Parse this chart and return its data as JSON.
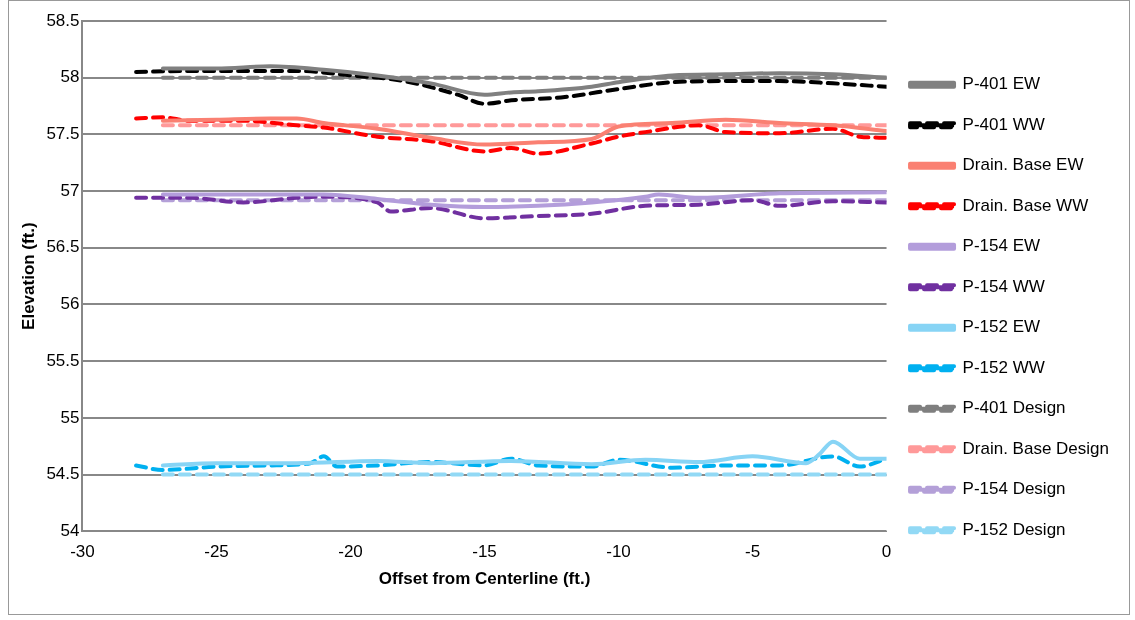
{
  "chart_data": {
    "type": "line",
    "xlabel": "Offset from Centerline (ft.)",
    "ylabel": "Elevation (ft.)",
    "xlim": [
      -30,
      0
    ],
    "xticks": [
      -30,
      -25,
      -20,
      -15,
      -10,
      -5,
      0
    ],
    "ylim": [
      54,
      58.5
    ],
    "yticks": [
      54,
      54.5,
      55,
      55.5,
      56,
      56.5,
      57,
      57.5,
      58,
      58.5
    ],
    "grid": "y",
    "legend": "right",
    "marker": "none",
    "series": [
      {
        "name": "P-401 EW",
        "color": "#808080",
        "line_style": "solid",
        "x": [
          -27,
          -25,
          -23,
          -21,
          -19,
          -17,
          -15,
          -14,
          -13,
          -11,
          -10,
          -8,
          -6,
          -4,
          -2,
          0
        ],
        "values": [
          58.08,
          58.08,
          58.1,
          58.07,
          58.02,
          57.95,
          57.85,
          57.87,
          57.88,
          57.92,
          57.96,
          58.02,
          58.03,
          58.04,
          58.03,
          58.0
        ]
      },
      {
        "name": "P-401 WW",
        "color": "#000000",
        "line_style": "dashed",
        "x": [
          -28,
          -26,
          -24,
          -22,
          -20,
          -18,
          -16,
          -15,
          -14,
          -12,
          -10,
          -8,
          -6,
          -4,
          -2,
          0
        ],
        "values": [
          58.05,
          58.06,
          58.06,
          58.06,
          58.02,
          57.97,
          57.85,
          57.77,
          57.8,
          57.83,
          57.9,
          57.96,
          57.97,
          57.97,
          57.95,
          57.92
        ]
      },
      {
        "name": "Drain. Base EW",
        "color": "#fa8072",
        "line_style": "solid",
        "x": [
          -27,
          -25,
          -23,
          -22,
          -21,
          -19,
          -17,
          -15,
          -13,
          -11,
          -10,
          -8,
          -6,
          -4,
          -2,
          0
        ],
        "values": [
          57.62,
          57.63,
          57.64,
          57.64,
          57.6,
          57.55,
          57.47,
          57.41,
          57.43,
          57.46,
          57.57,
          57.6,
          57.63,
          57.6,
          57.58,
          57.53
        ]
      },
      {
        "name": "Drain. Base WW",
        "color": "#ff0000",
        "line_style": "dashed",
        "x": [
          -28,
          -27,
          -26,
          -24,
          -22,
          -21,
          -19,
          -17,
          -15,
          -14,
          -13,
          -11,
          -10,
          -9,
          -7,
          -6,
          -4,
          -2,
          -1,
          0
        ],
        "values": [
          57.64,
          57.65,
          57.62,
          57.62,
          57.58,
          57.56,
          57.48,
          57.44,
          57.35,
          57.38,
          57.33,
          57.42,
          57.48,
          57.52,
          57.58,
          57.52,
          57.51,
          57.55,
          57.48,
          57.47
        ]
      },
      {
        "name": "P-154 EW",
        "color": "#b39ddb",
        "line_style": "solid",
        "x": [
          -27,
          -25,
          -21,
          -19,
          -17,
          -15,
          -13,
          -11,
          -9,
          -8.5,
          -7,
          -4,
          0
        ],
        "values": [
          56.97,
          56.97,
          56.97,
          56.93,
          56.88,
          56.86,
          56.87,
          56.9,
          56.95,
          56.97,
          56.94,
          56.98,
          56.99
        ]
      },
      {
        "name": "P-154 WW",
        "color": "#7030a0",
        "line_style": "dashed",
        "x": [
          -28,
          -26,
          -24,
          -22,
          -21,
          -19,
          -18.5,
          -17,
          -15,
          -13,
          -11,
          -9,
          -7,
          -5,
          -4,
          -2,
          0
        ],
        "values": [
          56.94,
          56.94,
          56.9,
          56.94,
          56.95,
          56.9,
          56.82,
          56.85,
          56.76,
          56.78,
          56.8,
          56.87,
          56.88,
          56.92,
          56.87,
          56.91,
          56.9
        ]
      },
      {
        "name": "P-152 EW",
        "color": "#87d4f5",
        "line_style": "solid",
        "x": [
          -27,
          -25,
          -22,
          -19,
          -17,
          -14,
          -11,
          -9,
          -7,
          -5,
          -3,
          -2.5,
          -2,
          -1,
          0
        ],
        "values": [
          54.58,
          54.6,
          54.6,
          54.62,
          54.6,
          54.62,
          54.59,
          54.63,
          54.61,
          54.66,
          54.6,
          54.68,
          54.79,
          54.64,
          54.64
        ]
      },
      {
        "name": "P-152 WW",
        "color": "#00b0f0",
        "line_style": "dashed",
        "x": [
          -28,
          -27,
          -25,
          -23,
          -21.5,
          -21,
          -20.5,
          -19,
          -17,
          -15,
          -14,
          -13,
          -11,
          -10,
          -8,
          -6,
          -4,
          -2,
          -1,
          0
        ],
        "values": [
          54.58,
          54.54,
          54.57,
          54.58,
          54.6,
          54.66,
          54.57,
          54.58,
          54.61,
          54.58,
          54.64,
          54.58,
          54.57,
          54.63,
          54.56,
          54.58,
          54.58,
          54.66,
          54.57,
          54.64
        ]
      },
      {
        "name": "P-401 Design",
        "color": "#7f7f7f",
        "line_style": "dashed",
        "x": [
          -27,
          0
        ],
        "values": [
          58.0,
          58.0
        ]
      },
      {
        "name": "Drain. Base Design",
        "color": "#ff9999",
        "line_style": "dashed",
        "x": [
          -27,
          0
        ],
        "values": [
          57.58,
          57.58
        ]
      },
      {
        "name": "P-154 Design",
        "color": "#b4a0d8",
        "line_style": "dashed",
        "x": [
          -27,
          0
        ],
        "values": [
          56.92,
          56.92
        ]
      },
      {
        "name": "P-152 Design",
        "color": "#92d9f5",
        "line_style": "dashed",
        "x": [
          -27,
          0
        ],
        "values": [
          54.5,
          54.5
        ]
      }
    ]
  }
}
